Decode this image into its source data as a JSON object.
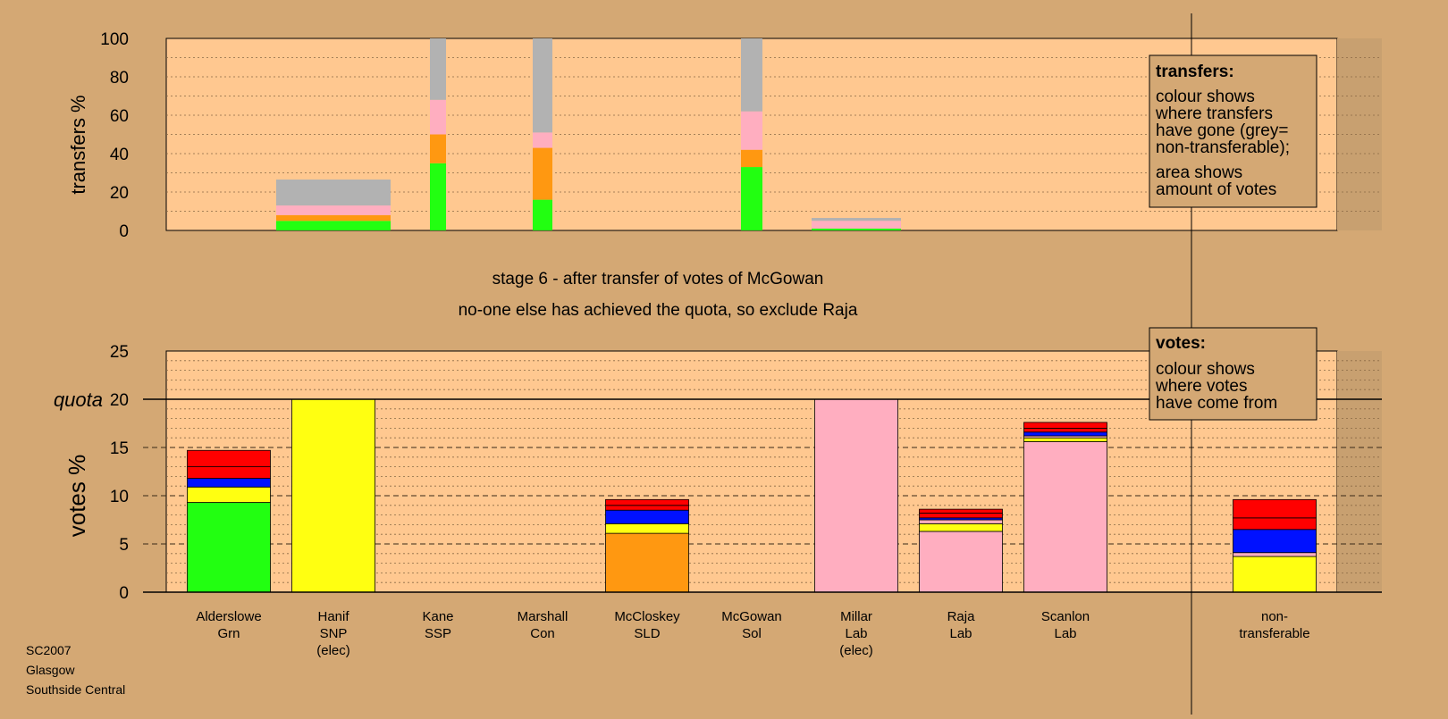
{
  "colors": {
    "page_bg": "#d4a874",
    "plot_bg": "#ffc890",
    "shade": "#c8a070",
    "Grn": "#22ff11",
    "SNP": "#ffff11",
    "SLD": "#ff9811",
    "Lab": "#ffaec0",
    "Con": "#0011ff",
    "Red": "#ff0000",
    "Nontrans": "#b2b2b2",
    "Other": "#ff0000"
  },
  "stage_text": {
    "line1": "stage 6 - after transfer of votes of McGowan",
    "line2": "no-one else has achieved the quota, so exclude Raja"
  },
  "legend_transfers": {
    "title": "transfers:",
    "lines1": [
      "colour shows",
      "where transfers",
      "have gone (grey=",
      "non-transferable);"
    ],
    "lines2": [
      "area shows",
      "amount of votes"
    ]
  },
  "legend_votes": {
    "title": "votes:",
    "lines": [
      "colour shows",
      "where votes",
      "have come from"
    ]
  },
  "footer": [
    "SC2007",
    "Glasgow",
    "Southside Central"
  ],
  "chart_data": [
    {
      "type": "bar",
      "name": "transfers",
      "ylabel": "transfers %",
      "ylim": [
        0,
        100
      ],
      "yticks": [
        0,
        20,
        40,
        60,
        80,
        100
      ],
      "bars": [
        {
          "candidate": "Hanif",
          "segments": [
            {
              "color": "Grn",
              "value": 5
            },
            {
              "color": "SLD",
              "value": 3
            },
            {
              "color": "Lab",
              "value": 5
            },
            {
              "color": "Nontrans",
              "value": 13.5
            }
          ]
        },
        {
          "candidate": "Kane",
          "segments": [
            {
              "color": "Grn",
              "value": 35
            },
            {
              "color": "SLD",
              "value": 15
            },
            {
              "color": "Lab",
              "value": 18
            },
            {
              "color": "Nontrans",
              "value": 32
            }
          ]
        },
        {
          "candidate": "Marshall",
          "segments": [
            {
              "color": "Grn",
              "value": 16
            },
            {
              "color": "SLD",
              "value": 27
            },
            {
              "color": "Lab",
              "value": 8
            },
            {
              "color": "Nontrans",
              "value": 49
            }
          ]
        },
        {
          "candidate": "McGowan",
          "segments": [
            {
              "color": "Grn",
              "value": 33
            },
            {
              "color": "SLD",
              "value": 9
            },
            {
              "color": "Lab",
              "value": 20
            },
            {
              "color": "Nontrans",
              "value": 38
            }
          ]
        },
        {
          "candidate": "Millar",
          "segments": [
            {
              "color": "Grn",
              "value": 1
            },
            {
              "color": "Lab",
              "value": 4
            },
            {
              "color": "Nontrans",
              "value": 1.5
            }
          ]
        }
      ]
    },
    {
      "type": "bar",
      "name": "votes",
      "ylabel": "votes %",
      "ylim": [
        0,
        25
      ],
      "yticks": [
        0,
        5,
        10,
        15,
        20,
        25
      ],
      "quota_label": "quota",
      "quota": 20,
      "categories": [
        {
          "line1": "Alderslowe",
          "line2": "Grn",
          "line3": ""
        },
        {
          "line1": "Hanif",
          "line2": "SNP",
          "line3": "(elec)"
        },
        {
          "line1": "Kane",
          "line2": "SSP",
          "line3": ""
        },
        {
          "line1": "Marshall",
          "line2": "Con",
          "line3": ""
        },
        {
          "line1": "McCloskey",
          "line2": "SLD",
          "line3": ""
        },
        {
          "line1": "McGowan",
          "line2": "Sol",
          "line3": ""
        },
        {
          "line1": "Millar",
          "line2": "Lab",
          "line3": "(elec)"
        },
        {
          "line1": "Raja",
          "line2": "Lab",
          "line3": ""
        },
        {
          "line1": "Scanlon",
          "line2": "Lab",
          "line3": ""
        },
        {
          "line1": "non-",
          "line2": "transferable",
          "line3": ""
        }
      ],
      "bars": [
        {
          "candidate": "Alderslowe",
          "segments": [
            {
              "color": "Grn",
              "value": 9.3
            },
            {
              "color": "SNP",
              "value": 1.6
            },
            {
              "color": "Con",
              "value": 0.9
            },
            {
              "color": "Red",
              "value": 1.2
            },
            {
              "color": "Red",
              "value": 1.7
            }
          ]
        },
        {
          "candidate": "Hanif",
          "segments": [
            {
              "color": "SNP",
              "value": 20
            }
          ]
        },
        {
          "candidate": "McCloskey",
          "segments": [
            {
              "color": "SLD",
              "value": 6.1
            },
            {
              "color": "SNP",
              "value": 1.0
            },
            {
              "color": "Con",
              "value": 1.4
            },
            {
              "color": "Red",
              "value": 0.5
            },
            {
              "color": "Red",
              "value": 0.6
            }
          ]
        },
        {
          "candidate": "Millar",
          "segments": [
            {
              "color": "Lab",
              "value": 20
            }
          ]
        },
        {
          "candidate": "Raja",
          "segments": [
            {
              "color": "Lab",
              "value": 6.3
            },
            {
              "color": "SNP",
              "value": 0.8
            },
            {
              "color": "Lab",
              "value": 0.4
            },
            {
              "color": "Con",
              "value": 0.2
            },
            {
              "color": "Red",
              "value": 0.5
            },
            {
              "color": "Red",
              "value": 0.4
            }
          ]
        },
        {
          "candidate": "Scanlon",
          "segments": [
            {
              "color": "Lab",
              "value": 15.6
            },
            {
              "color": "SNP",
              "value": 0.4
            },
            {
              "color": "Lab",
              "value": 0.2
            },
            {
              "color": "Con",
              "value": 0.4
            },
            {
              "color": "Red",
              "value": 0.4
            },
            {
              "color": "Red",
              "value": 0.6
            }
          ]
        },
        {
          "candidate": "non-transferable",
          "segments": [
            {
              "color": "SNP",
              "value": 3.7
            },
            {
              "color": "Lab",
              "value": 0.4
            },
            {
              "color": "Con",
              "value": 2.4
            },
            {
              "color": "Red",
              "value": 1.2
            },
            {
              "color": "Red",
              "value": 1.9
            }
          ]
        }
      ]
    }
  ]
}
